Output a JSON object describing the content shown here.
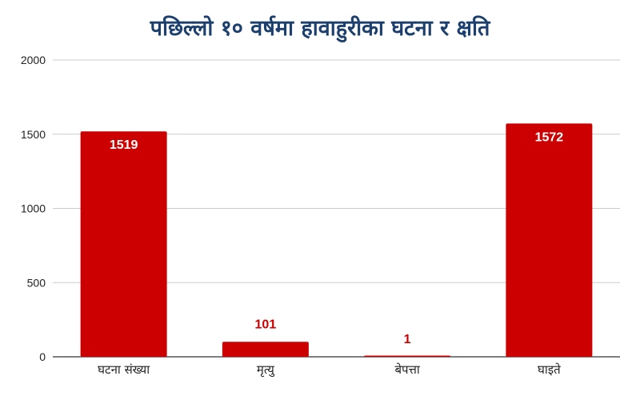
{
  "chart_data": {
    "type": "bar",
    "title": "पछिल्लो १० वर्षमा हावाहुरीका घटना र क्षति",
    "categories": [
      "घटना संख्या",
      "मृत्यु",
      "बेपत्ता",
      "घाइते"
    ],
    "values": [
      1519,
      101,
      1,
      1572
    ],
    "data_labels": [
      "1519",
      "101",
      "1",
      "1572"
    ],
    "ylim": [
      0,
      2000
    ],
    "yticks": [
      0,
      500,
      1000,
      1500,
      2000
    ],
    "xlabel": "",
    "ylabel": "",
    "grid": true,
    "legend": "none",
    "colors": {
      "bar": "#cc0000",
      "label_inside": "#ffffff",
      "label_outside": "#cc0000",
      "gridline": "#cccccc",
      "title": "#1c3f6e"
    }
  }
}
